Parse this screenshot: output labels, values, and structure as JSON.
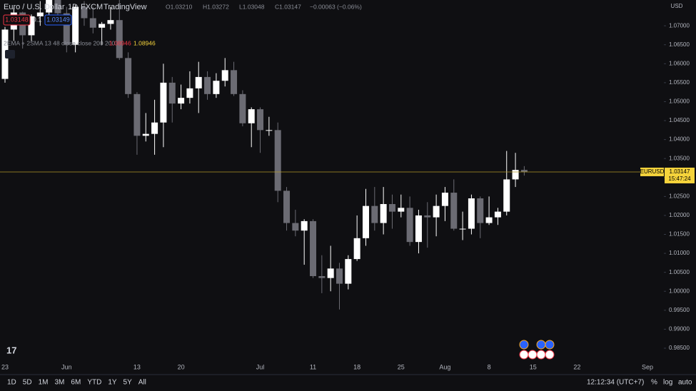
{
  "header": {
    "symbol": "Euro / U.S. Dollar",
    "interval": "1D",
    "source": "FXCM",
    "publisher": "TradingView",
    "ohlc": [
      "O1.03210",
      "H1.03272",
      "L1.03048",
      "C1.03147",
      "−0.00063 (−0.06%)"
    ]
  },
  "order_panel": {
    "sell": "1.03148",
    "spread": "0.1",
    "buy": "1.03149"
  },
  "indicator": {
    "name": "2EMA + 2SMA 13 48 close close 200 200",
    "values": [
      "1.08946",
      "1.08946"
    ]
  },
  "currency": "USD",
  "chart_data": {
    "type": "candlestick",
    "categories": [
      "23",
      null,
      null,
      null,
      null,
      null,
      null,
      "Jun",
      null,
      null,
      null,
      null,
      null,
      null,
      null,
      "13",
      null,
      null,
      null,
      null,
      "20",
      null,
      null,
      null,
      null,
      null,
      null,
      null,
      null,
      "Jul",
      null,
      null,
      null,
      null,
      null,
      "11",
      null,
      null,
      null,
      null,
      "18",
      null,
      null,
      null,
      null,
      "25",
      null,
      null,
      null,
      null,
      "Aug",
      null,
      null,
      null,
      null,
      "8",
      null,
      null,
      null,
      null,
      "15",
      null,
      null,
      null,
      null,
      "22",
      null,
      null,
      null,
      null,
      null,
      null,
      null,
      "Sep"
    ],
    "open": [
      1.056,
      1.069,
      1.0735,
      1.0675,
      1.0725,
      1.0735,
      1.078,
      1.0733,
      1.065,
      1.075,
      1.072,
      1.0695,
      1.0705,
      1.0715,
      1.0615,
      1.052,
      1.041,
      1.0415,
      1.0445,
      1.055,
      1.0495,
      1.051,
      1.0535,
      1.0565,
      1.052,
      1.0555,
      1.0583,
      1.052,
      1.0443,
      1.048,
      1.0425,
      1.0425,
      1.0265,
      1.018,
      1.016,
      1.0185,
      1.004,
      1.0035,
      1.006,
      1.002,
      1.0085,
      1.014,
      1.0225,
      1.018,
      1.023,
      1.021,
      1.022,
      1.013,
      1.02,
      1.0195,
      1.0225,
      1.026,
      1.0165,
      1.0165,
      1.0245,
      1.018,
      1.0195,
      1.021,
      1.0295,
      1.032,
      null,
      null,
      null,
      null,
      null,
      null,
      null,
      null,
      null,
      null,
      null,
      null,
      null,
      null
    ],
    "high": [
      1.0697,
      1.0748,
      1.0737,
      1.073,
      1.0765,
      1.0787,
      1.078,
      1.075,
      1.0755,
      1.0765,
      1.075,
      1.071,
      1.075,
      1.0775,
      1.063,
      1.0525,
      1.047,
      1.0505,
      1.06,
      1.0565,
      1.0545,
      1.058,
      1.0605,
      1.058,
      1.0575,
      1.0615,
      1.0605,
      1.053,
      1.0485,
      1.0485,
      1.046,
      1.0445,
      1.0275,
      1.0215,
      1.019,
      1.019,
      1.0095,
      1.012,
      1.0075,
      1.0095,
      1.02,
      1.027,
      1.0275,
      1.0275,
      1.0255,
      1.0255,
      1.025,
      1.0215,
      1.0235,
      1.0255,
      1.0275,
      1.0295,
      1.021,
      1.0255,
      1.025,
      1.025,
      1.022,
      1.037,
      1.0365,
      1.033,
      null,
      null,
      null,
      null,
      null,
      null,
      null,
      null,
      null,
      null,
      null,
      null,
      null,
      null
    ],
    "low": [
      1.055,
      1.066,
      1.064,
      1.066,
      1.07,
      1.0715,
      1.071,
      1.063,
      1.063,
      1.07,
      1.068,
      1.065,
      1.069,
      1.061,
      1.051,
      1.036,
      1.0395,
      1.036,
      1.038,
      1.0445,
      1.048,
      1.0495,
      1.047,
      1.0505,
      1.051,
      1.054,
      1.0515,
      1.0435,
      1.038,
      1.0365,
      1.041,
      1.0235,
      1.016,
      1.0145,
      1.007,
      1.0035,
      0.9995,
      1.0,
      0.9952,
      1.0005,
      1.008,
      1.012,
      1.016,
      1.015,
      1.0165,
      1.0195,
      1.012,
      1.01,
      1.0115,
      1.0145,
      1.0185,
      1.016,
      1.0135,
      1.015,
      1.014,
      1.0175,
      1.0175,
      1.02,
      1.0275,
      1.0305,
      null,
      null,
      null,
      null,
      null,
      null,
      null,
      null,
      null,
      null,
      null,
      null,
      null,
      null
    ],
    "close": [
      1.069,
      1.0735,
      1.0675,
      1.0725,
      1.0735,
      1.078,
      1.0733,
      1.065,
      1.075,
      1.072,
      1.0695,
      1.0705,
      1.0715,
      1.0615,
      1.052,
      1.041,
      1.0415,
      1.0445,
      1.055,
      1.0495,
      1.051,
      1.0535,
      1.0565,
      1.052,
      1.0555,
      1.0583,
      1.052,
      1.0443,
      1.048,
      1.0425,
      1.0425,
      1.0265,
      1.018,
      1.016,
      1.0185,
      1.004,
      1.0035,
      1.006,
      1.002,
      1.0085,
      1.014,
      1.0225,
      1.018,
      1.023,
      1.021,
      1.022,
      1.013,
      1.02,
      1.0195,
      1.0225,
      1.026,
      1.0165,
      1.0165,
      1.0245,
      1.018,
      1.0195,
      1.021,
      1.0295,
      1.032,
      1.03147,
      null,
      null,
      null,
      null,
      null,
      null,
      null,
      null,
      null,
      null,
      null,
      null,
      null,
      null
    ],
    "up_color": "#ffffff",
    "down_color": "#6b6b73",
    "ylim": [
      0.9818,
      1.0768
    ],
    "yticks": [
      {
        "value": 0.985,
        "label": "0.98500"
      },
      {
        "value": 0.99,
        "label": "0.99000"
      },
      {
        "value": 0.995,
        "label": "0.99500"
      },
      {
        "value": 1.0,
        "label": "1.00000"
      },
      {
        "value": 1.005,
        "label": "1.00500"
      },
      {
        "value": 1.01,
        "label": "1.01000"
      },
      {
        "value": 1.015,
        "label": "1.01500"
      },
      {
        "value": 1.02,
        "label": "1.02000"
      },
      {
        "value": 1.025,
        "label": "1.02500"
      },
      {
        "value": 1.03,
        "label": "1.03000"
      },
      {
        "value": 1.035,
        "label": "1.03500"
      },
      {
        "value": 1.04,
        "label": "1.04000"
      },
      {
        "value": 1.045,
        "label": "1.04500"
      },
      {
        "value": 1.05,
        "label": "1.05000"
      },
      {
        "value": 1.055,
        "label": "1.05500"
      },
      {
        "value": 1.06,
        "label": "1.06000"
      },
      {
        "value": 1.065,
        "label": "1.06500"
      },
      {
        "value": 1.07,
        "label": "1.07000"
      }
    ],
    "grid": false,
    "last_price": 1.03147,
    "symbol": "EURUSD",
    "countdown": "15:47:24"
  },
  "toolbar": {
    "ranges": [
      "1D",
      "5D",
      "1M",
      "3M",
      "6M",
      "YTD",
      "1Y",
      "5Y",
      "All"
    ],
    "clock": "12:12:34 (UTC+7)",
    "options": [
      "%",
      "log",
      "auto"
    ]
  }
}
